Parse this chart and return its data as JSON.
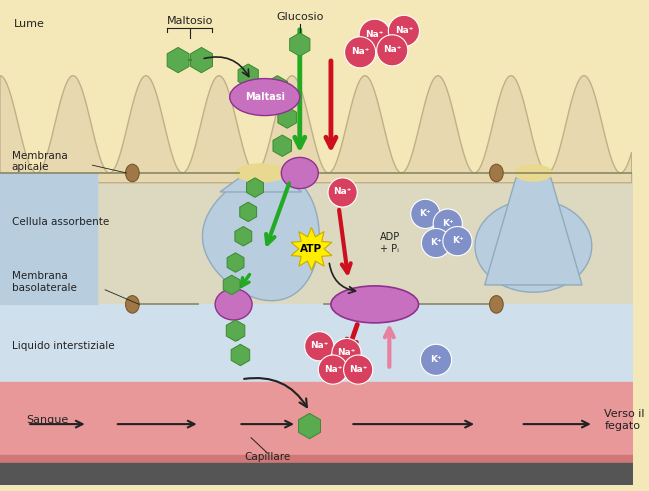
{
  "bg_lume": "#f5e8b8",
  "bg_cell_interior": "#c8d8e8",
  "bg_interstitial": "#cfe0ec",
  "bg_blood": "#e89898",
  "bg_blood_dark": "#d07878",
  "villi_fill": "#e8d8b0",
  "villi_border": "#c0b088",
  "cell_body_fill": "#b8cede",
  "cell_body_border": "#90aabe",
  "tight_junction_color": "#a07848",
  "glucose_fill": "#5aaa50",
  "glucose_edge": "#3a8a30",
  "na_fill": "#d84060",
  "na_edge": "#ffffff",
  "k_fill": "#8090c8",
  "k_edge": "#ffffff",
  "maltasi_fill": "#c870c0",
  "maltasi_edge": "#903090",
  "transporter_fill": "#c870c0",
  "pump_fill": "#c870c0",
  "atp_fill": "#ffee00",
  "atp_edge": "#ccaa00",
  "red_arrow": "#cc1020",
  "green_arrow": "#22aa22",
  "pink_arrow": "#e880a0",
  "black_arrow": "#222222",
  "text_color": "#222222",
  "lume_label": "Lume",
  "membrana_apicale": "Membrana\napicale",
  "cellula_assorbente": "Cellula assorbente",
  "membrana_basolaterale": "Membrana\nbasolaterale",
  "liquido_interstiziale": "Liquido interstiziale",
  "sangue_label": "Sangue",
  "capillare_label": "Capillare",
  "verso_fegato_label": "Verso il\nfegato",
  "maltosio_label": "Maltosio",
  "glucosio_label": "Glucosio",
  "maltasi_label": "Maltasi",
  "atp_label": "ATP",
  "adp_label": "ADP\n+ Pᵢ",
  "na_label": "Na⁺",
  "k_label": "K⁺"
}
